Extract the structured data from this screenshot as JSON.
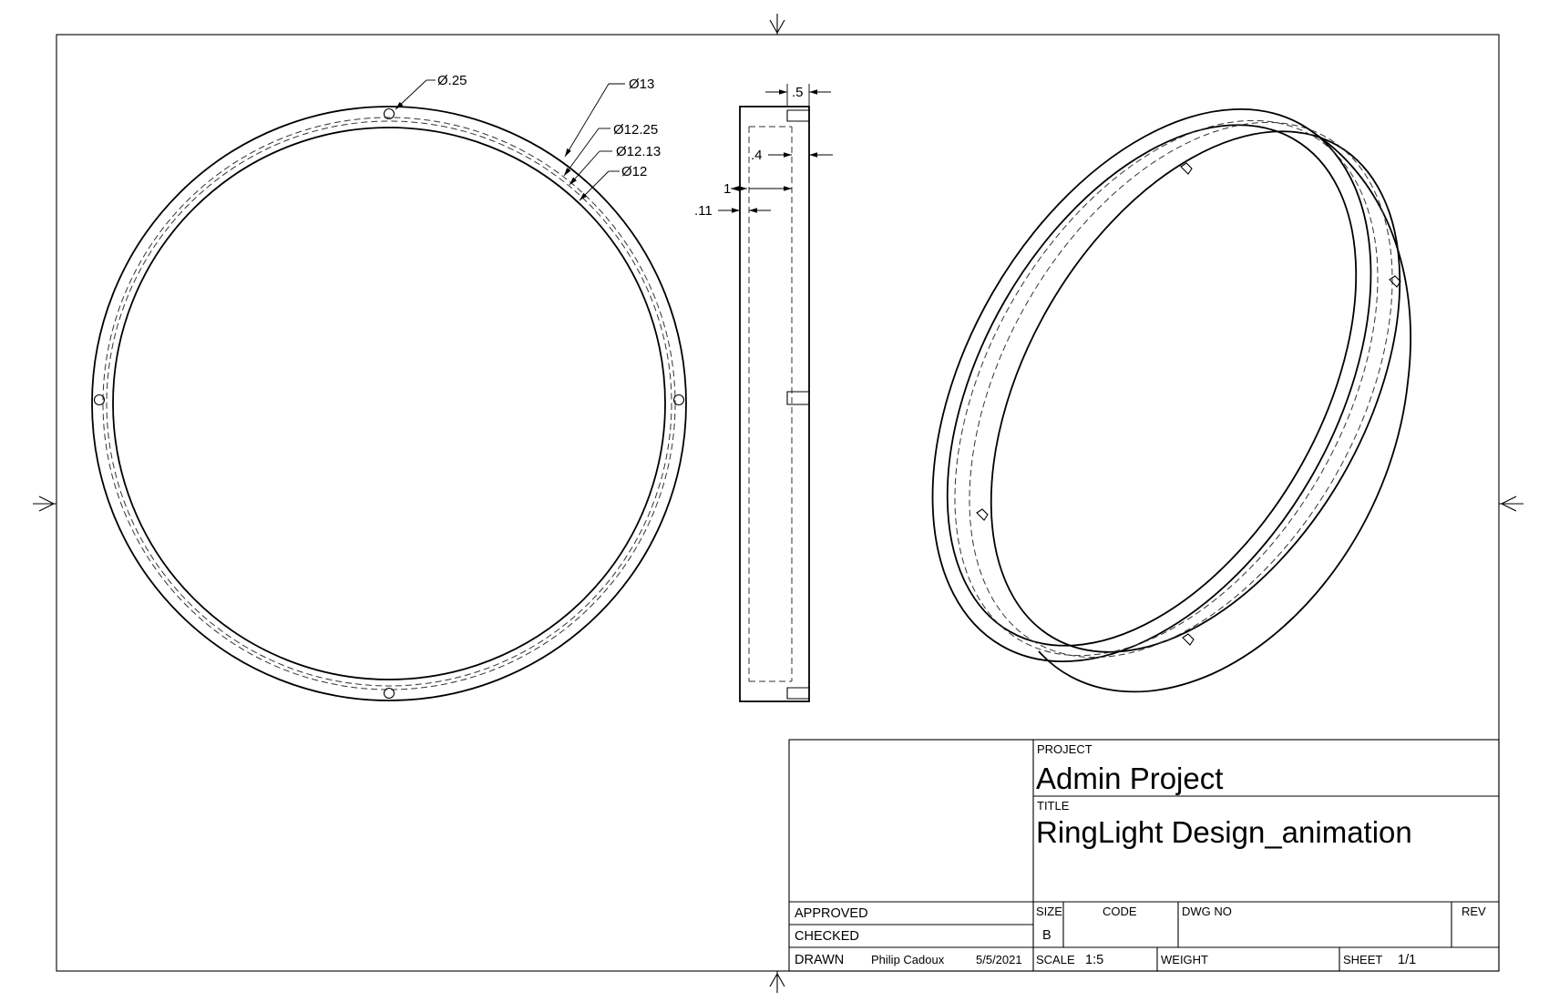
{
  "dimensions": {
    "hole_dia": "Ø.25",
    "outer_dia": "Ø13",
    "dia_12_25": "Ø12.25",
    "dia_12_13": "Ø12.13",
    "inner_dia": "Ø12",
    "side_top": ".5",
    "side_groove": ".4",
    "side_width": "1",
    "side_wall": ".11"
  },
  "title_block": {
    "project_label": "PROJECT",
    "project": "Admin Project",
    "title_label": "TITLE",
    "title": "RingLight Design_animation",
    "approved_label": "APPROVED",
    "checked_label": "CHECKED",
    "drawn_label": "DRAWN",
    "drawn_by": "Philip Cadoux",
    "drawn_date": "5/5/2021",
    "size_label": "SIZE",
    "size": "B",
    "code_label": "CODE",
    "dwg_no_label": "DWG NO",
    "rev_label": "REV",
    "scale_label": "SCALE",
    "scale": "1:5",
    "weight_label": "WEIGHT",
    "sheet_label": "SHEET",
    "sheet": "1/1"
  }
}
